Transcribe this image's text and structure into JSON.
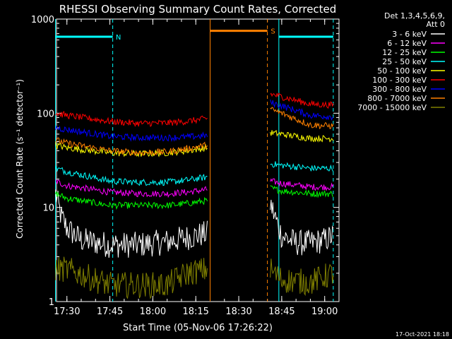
{
  "chart_data": {
    "type": "line",
    "title": "RHESSI Observing Summary Count Rates, Corrected",
    "xlabel": "Start Time (05-Nov-06 17:26:22)",
    "ylabel": "Corrected Count Rate (s⁻¹ detector⁻¹)",
    "y_scale": "log",
    "ylim": [
      1,
      1000
    ],
    "xlim": [
      "17:26:22",
      "19:05:00"
    ],
    "x_ticks": [
      "17:30",
      "17:45",
      "18:00",
      "18:15",
      "18:30",
      "18:45",
      "19:00"
    ],
    "y_ticks": [
      "1",
      "10",
      "100",
      "1000"
    ],
    "legend_header": [
      "Det 1,3,4,5,6,9,",
      "Att 0"
    ],
    "legend_position": "right",
    "series": [
      {
        "name": "3 - 6 keV",
        "color": "#ffffff",
        "segments": [
          {
            "x": [
              "17:26",
              "17:28",
              "17:30",
              "17:35",
              "17:45",
              "17:55",
              "18:05",
              "18:12",
              "18:19"
            ],
            "y": [
              14,
              8,
              6,
              4.5,
              4,
              4,
              4.3,
              4.8,
              5.3
            ]
          },
          {
            "x": [
              "18:41",
              "18:42",
              "18:45",
              "18:50",
              "18:55",
              "19:00",
              "19:03"
            ],
            "y": [
              11,
              9,
              5,
              4.2,
              4.2,
              4.5,
              5
            ]
          }
        ]
      },
      {
        "name": "6 - 12 keV",
        "color": "#ff00ff",
        "segments": [
          {
            "x": [
              "17:26",
              "17:30",
              "17:45",
              "17:55",
              "18:05",
              "18:12",
              "18:19"
            ],
            "y": [
              19,
              17,
              14.5,
              14,
              14,
              14.5,
              15.5
            ]
          },
          {
            "x": [
              "18:41",
              "18:45",
              "18:55",
              "19:03"
            ],
            "y": [
              19,
              18,
              16.5,
              16.5
            ]
          }
        ]
      },
      {
        "name": "12 - 25 keV",
        "color": "#00ff00",
        "segments": [
          {
            "x": [
              "17:26",
              "17:30",
              "17:45",
              "17:55",
              "18:05",
              "18:12",
              "18:19"
            ],
            "y": [
              14,
              12.5,
              10.5,
              10.5,
              10.5,
              11,
              11.8
            ]
          },
          {
            "x": [
              "18:41",
              "18:45",
              "18:55",
              "19:03"
            ],
            "y": [
              16,
              15,
              14,
              14
            ]
          }
        ]
      },
      {
        "name": "25 - 50 keV",
        "color": "#00ffff",
        "segments": [
          {
            "x": [
              "17:26",
              "17:30",
              "17:45",
              "17:55",
              "18:05",
              "18:12",
              "18:19"
            ],
            "y": [
              26,
              24,
              19,
              18.5,
              18.5,
              19.5,
              21
            ]
          },
          {
            "x": [
              "18:41",
              "18:45",
              "18:55",
              "19:03"
            ],
            "y": [
              29,
              28,
              26,
              26
            ]
          }
        ]
      },
      {
        "name": "50 - 100 keV",
        "color": "#ffff00",
        "segments": [
          {
            "x": [
              "17:26",
              "17:30",
              "17:45",
              "17:55",
              "18:05",
              "18:12",
              "18:19"
            ],
            "y": [
              46,
              43,
              38,
              37,
              38,
              40,
              43
            ]
          },
          {
            "x": [
              "18:41",
              "18:45",
              "18:55",
              "19:03"
            ],
            "y": [
              62,
              60,
              54,
              54
            ]
          }
        ]
      },
      {
        "name": "100 - 300 keV",
        "color": "#ff0000",
        "segments": [
          {
            "x": [
              "17:26",
              "17:30",
              "17:45",
              "17:55",
              "18:05",
              "18:12",
              "18:19"
            ],
            "y": [
              100,
              95,
              82,
              78,
              79,
              82,
              88
            ]
          },
          {
            "x": [
              "18:41",
              "18:45",
              "18:55",
              "19:03"
            ],
            "y": [
              160,
              150,
              125,
              122
            ]
          }
        ]
      },
      {
        "name": "300 - 800 keV",
        "color": "#0000ff",
        "segments": [
          {
            "x": [
              "17:26",
              "17:30",
              "17:45",
              "17:55",
              "18:05",
              "18:12",
              "18:19"
            ],
            "y": [
              70,
              67,
              57,
              55,
              55,
              56,
              58
            ]
          },
          {
            "x": [
              "18:41",
              "18:45",
              "18:55",
              "19:03"
            ],
            "y": [
              130,
              120,
              95,
              92
            ]
          }
        ]
      },
      {
        "name": "800 - 7000 keV",
        "color": "#ff8000",
        "segments": [
          {
            "x": [
              "17:26",
              "17:30",
              "17:45",
              "17:55",
              "18:05",
              "18:12",
              "18:19"
            ],
            "y": [
              52,
              48,
              40,
              38,
              39,
              42,
              46
            ]
          },
          {
            "x": [
              "18:41",
              "18:45",
              "18:55",
              "19:03"
            ],
            "y": [
              110,
              100,
              75,
              73
            ]
          }
        ]
      },
      {
        "name": "7000 - 15000 keV",
        "color": "#808000",
        "segments": [
          {
            "x": [
              "17:26",
              "17:30",
              "17:45",
              "17:55",
              "18:05",
              "18:12",
              "18:19"
            ],
            "y": [
              2.2,
              2.2,
              1.5,
              1.5,
              1.5,
              2,
              2.2
            ]
          },
          {
            "x": [
              "18:41",
              "18:45",
              "18:55",
              "19:03"
            ],
            "y": [
              2.2,
              1.7,
              1.6,
              2
            ]
          }
        ]
      }
    ],
    "annotations": [
      {
        "label": "N",
        "color": "#00ffff",
        "x_start": "17:26",
        "x_end": "17:46",
        "y": 650
      },
      {
        "label": "S",
        "color": "#ff8000",
        "x_start": "18:20",
        "x_end": "18:40",
        "y": 750
      },
      {
        "label": "",
        "color": "#00ffff",
        "x_start": "18:44",
        "x_end": "19:03",
        "y": 650
      }
    ],
    "background": "#000000",
    "grid": false
  },
  "footer": {
    "timestamp": "17-Oct-2021 18:18"
  }
}
